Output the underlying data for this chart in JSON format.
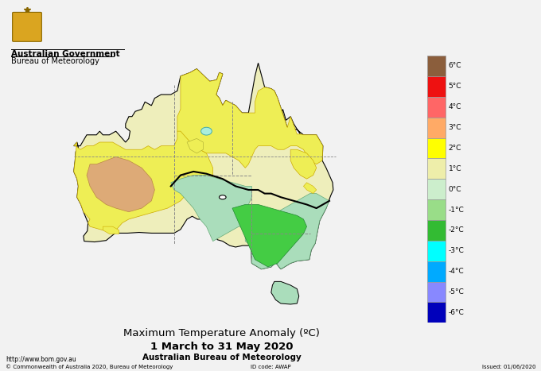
{
  "title_line1": "Maximum Temperature Anomaly (ºC)",
  "title_line2": "1 March to 31 May 2020",
  "title_line3": "Australian Bureau of Meteorology",
  "footer_left": "© Commonwealth of Australia 2020, Bureau of Meteorology",
  "footer_center": "ID code: AWAP",
  "footer_right": "Issued: 01/06/2020",
  "website": "http://www.bom.gov.au",
  "legend_labels": [
    "6°C",
    "5°C",
    "4°C",
    "3°C",
    "2°C",
    "1°C",
    "0°C",
    "-1°C",
    "-2°C",
    "-3°C",
    "-4°C",
    "-5°C",
    "-6°C"
  ],
  "legend_colors": [
    "#8B5E3C",
    "#EE1111",
    "#FF6666",
    "#FFAA66",
    "#FFFF00",
    "#EEEEAA",
    "#CCEECC",
    "#99DD88",
    "#33BB33",
    "#00FFFF",
    "#00AAFF",
    "#8888FF",
    "#0000BB"
  ],
  "color_cream": "#EEEEBB",
  "color_yellow": "#EEEE55",
  "color_orange": "#DDAA77",
  "color_lightgreen": "#AADDBB",
  "color_green": "#44CC44",
  "color_cyan_spot": "#AAEEDD",
  "bg_color": "#f2f2f2"
}
